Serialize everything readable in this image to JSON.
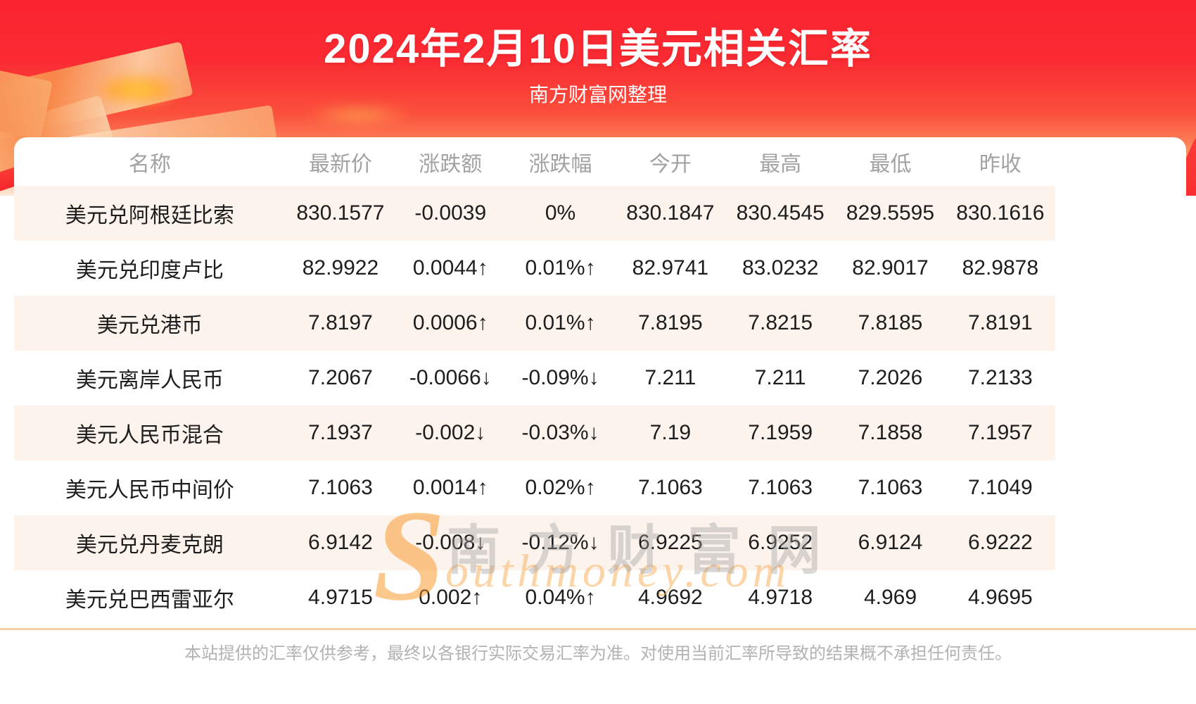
{
  "header": {
    "title": "2024年2月10日美元相关汇率",
    "subtitle": "南方财富网整理"
  },
  "table": {
    "columns": [
      "名称",
      "最新价",
      "涨跌额",
      "涨跌幅",
      "今开",
      "最高",
      "最低",
      "昨收"
    ],
    "rows": [
      {
        "name": "美元兑阿根廷比索",
        "latest": "830.1577",
        "change": "-0.0039",
        "change_pct": "0%",
        "open": "830.1847",
        "high": "830.4545",
        "low": "829.5595",
        "prev_close": "830.1616",
        "trend": "flat"
      },
      {
        "name": "美元兑印度卢比",
        "latest": "82.9922",
        "change": "0.0044↑",
        "change_pct": "0.01%↑",
        "open": "82.9741",
        "high": "83.0232",
        "low": "82.9017",
        "prev_close": "82.9878",
        "trend": "up"
      },
      {
        "name": "美元兑港币",
        "latest": "7.8197",
        "change": "0.0006↑",
        "change_pct": "0.01%↑",
        "open": "7.8195",
        "high": "7.8215",
        "low": "7.8185",
        "prev_close": "7.8191",
        "trend": "up"
      },
      {
        "name": "美元离岸人民币",
        "latest": "7.2067",
        "change": "-0.0066↓",
        "change_pct": "-0.09%↓",
        "open": "7.211",
        "high": "7.211",
        "low": "7.2026",
        "prev_close": "7.2133",
        "trend": "down"
      },
      {
        "name": "美元人民币混合",
        "latest": "7.1937",
        "change": "-0.002↓",
        "change_pct": "-0.03%↓",
        "open": "7.19",
        "high": "7.1959",
        "low": "7.1858",
        "prev_close": "7.1957",
        "trend": "down"
      },
      {
        "name": "美元人民币中间价",
        "latest": "7.1063",
        "change": "0.0014↑",
        "change_pct": "0.02%↑",
        "open": "7.1063",
        "high": "7.1063",
        "low": "7.1063",
        "prev_close": "7.1049",
        "trend": "up"
      },
      {
        "name": "美元兑丹麦克朗",
        "latest": "6.9142",
        "change": "-0.008↓",
        "change_pct": "-0.12%↓",
        "open": "6.9225",
        "high": "6.9252",
        "low": "6.9124",
        "prev_close": "6.9222",
        "trend": "down"
      },
      {
        "name": "美元兑巴西雷亚尔",
        "latest": "4.9715",
        "change": "0.002↑",
        "change_pct": "0.04%↑",
        "open": "4.9692",
        "high": "4.9718",
        "low": "4.969",
        "prev_close": "4.9695",
        "trend": "up"
      }
    ]
  },
  "watermark": {
    "cn": "南方财富网",
    "en_big": "S",
    "en_rest": "outhmoney.com"
  },
  "footer": {
    "disclaimer": "本站提供的汇率仅供参考，最终以各银行实际交易汇率为准。对使用当前汇率所导致的结果概不承担任何责任。"
  },
  "colors": {
    "banner_red_top": "#fa2430",
    "banner_peach_bottom": "#fdeadb",
    "row_alt_background": "#fdf3ed",
    "up_red": "#f91d1d",
    "down_green": "#149b3b",
    "neutral_black": "#1d1d1d",
    "header_gray": "#a2a2a2",
    "divider_tan": "#f6cfa0",
    "disclaimer_gray": "#b3b1b1"
  }
}
